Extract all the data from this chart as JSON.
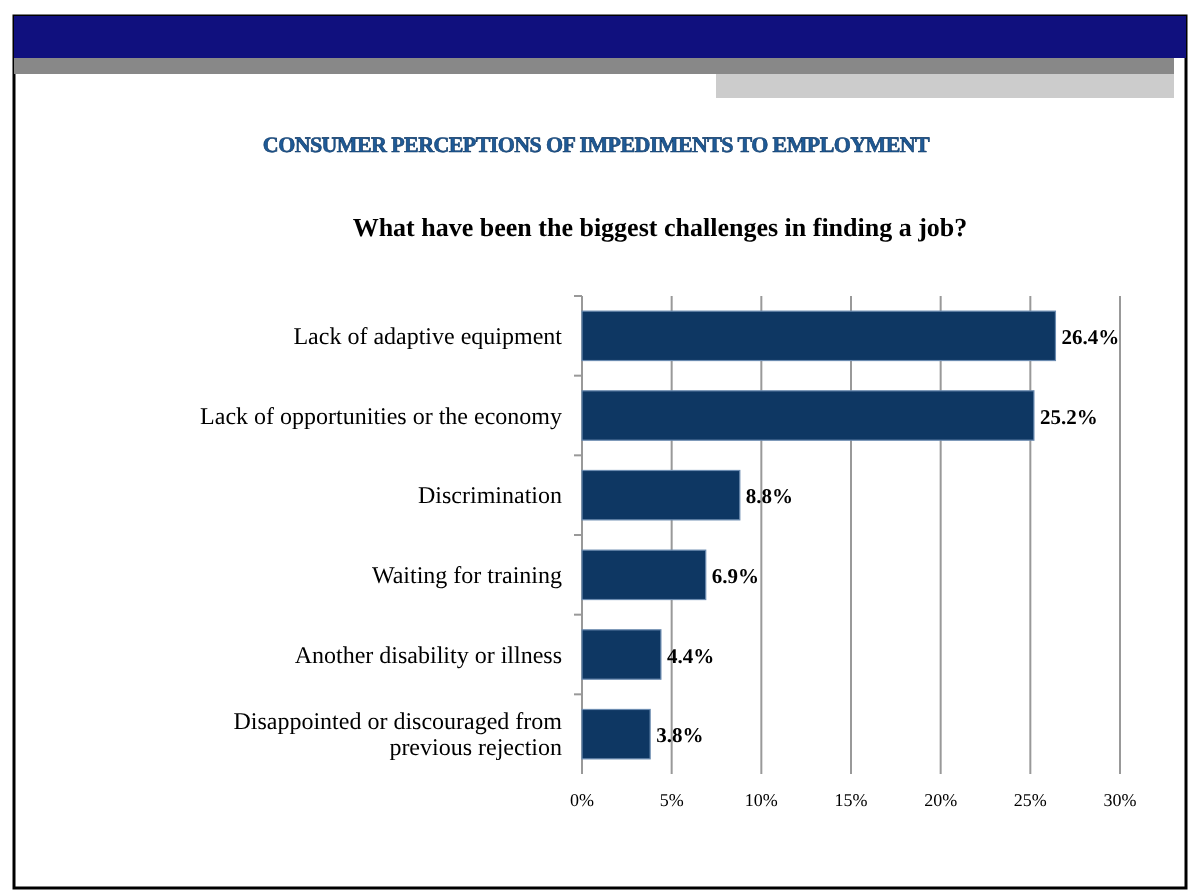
{
  "chart_data": {
    "type": "bar",
    "orientation": "horizontal",
    "title": "CONSUMER PERCEPTIONS OF IMPEDIMENTS TO EMPLOYMENT",
    "subtitle": "What have been the biggest challenges in finding a job?",
    "categories": [
      "Lack of adaptive equipment",
      "Lack of opportunities or the economy",
      "Discrimination",
      "Waiting for training",
      "Another disability or illness",
      "Disappointed or discouraged from previous rejection"
    ],
    "values": [
      26.4,
      25.2,
      8.8,
      6.9,
      4.4,
      3.8
    ],
    "value_labels": [
      "26.4%",
      "25.2%",
      "8.8%",
      "6.9%",
      "4.4%",
      "3.8%"
    ],
    "color": "#0e3763",
    "xlim": [
      0,
      30
    ],
    "xticks": [
      {
        "value": 0,
        "label": "0%"
      },
      {
        "value": 5,
        "label": "5%"
      },
      {
        "value": 10,
        "label": "10%"
      },
      {
        "value": 15,
        "label": "15%"
      },
      {
        "value": 20,
        "label": "20%"
      },
      {
        "value": 25,
        "label": "25%"
      },
      {
        "value": 30,
        "label": "30%"
      }
    ],
    "grid": "x"
  }
}
